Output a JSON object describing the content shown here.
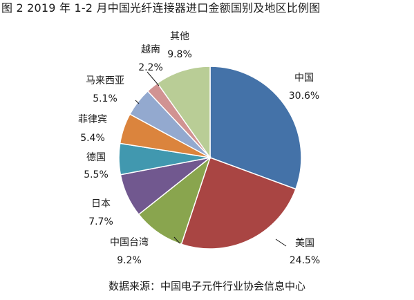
{
  "title": "图 2    2019 年 1-2 月中国光纤连接器进口金额国别及地区比例图",
  "source_note": "数据来源：中国电子元件行业协会信息中心",
  "chart_data": {
    "type": "pie",
    "title": "图 2    2019 年 1-2 月中国光纤连接器进口金额国别及地区比例图",
    "start_angle_deg": 0,
    "direction": "clockwise",
    "slices": [
      {
        "label": "中国",
        "value": 30.6,
        "display": "30.6%",
        "color": "#4472a8"
      },
      {
        "label": "美国",
        "value": 24.5,
        "display": "24.5%",
        "color": "#a94543"
      },
      {
        "label": "中国台湾",
        "value": 9.2,
        "display": "9.2%",
        "color": "#89a54e"
      },
      {
        "label": "日本",
        "value": 7.7,
        "display": "7.7%",
        "color": "#71588f"
      },
      {
        "label": "德国",
        "value": 5.5,
        "display": "5.5%",
        "color": "#4198af"
      },
      {
        "label": "菲律宾",
        "value": 5.4,
        "display": "5.4%",
        "color": "#db843d"
      },
      {
        "label": "马来西亚",
        "value": 5.1,
        "display": "5.1%",
        "color": "#93a9cf"
      },
      {
        "label": "越南",
        "value": 2.2,
        "display": "2.2%",
        "color": "#d19392"
      },
      {
        "label": "其他",
        "value": 9.8,
        "display": "9.8%",
        "color": "#b9cd96"
      }
    ],
    "legend": "none"
  }
}
